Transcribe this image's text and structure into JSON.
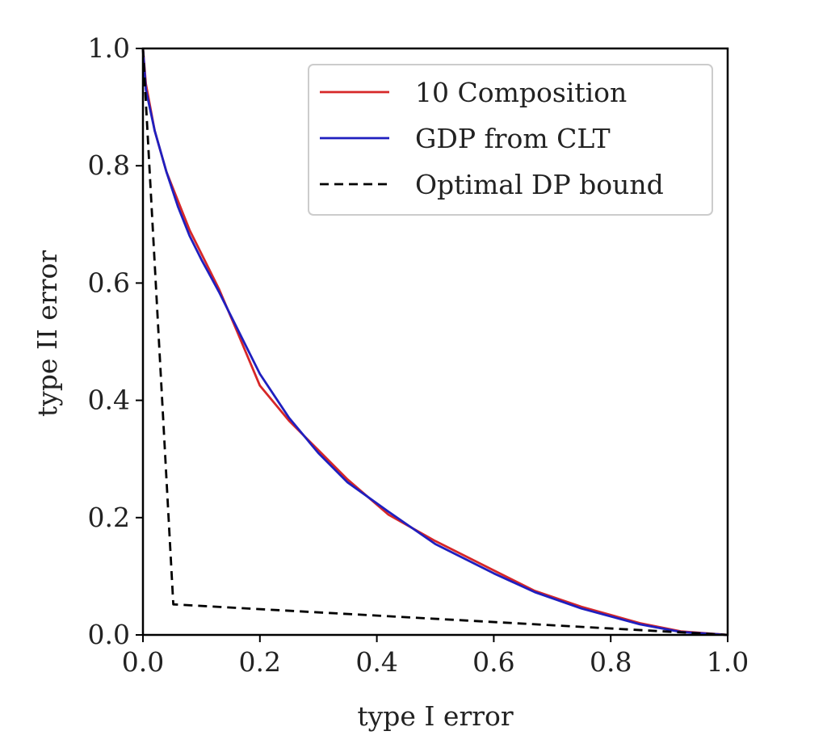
{
  "chart_data": {
    "type": "line",
    "title": "",
    "xlabel": "type I error",
    "ylabel": "type II error",
    "xlim": [
      0.0,
      1.0
    ],
    "ylim": [
      0.0,
      1.0
    ],
    "grid": false,
    "legend_position": "top-right",
    "x_ticks": [
      0.0,
      0.2,
      0.4,
      0.6,
      0.8,
      1.0
    ],
    "y_ticks": [
      0.0,
      0.2,
      0.4,
      0.6,
      0.8,
      1.0
    ],
    "x_tick_labels": [
      "0.0",
      "0.2",
      "0.4",
      "0.6",
      "0.8",
      "1.0"
    ],
    "y_tick_labels": [
      "0.0",
      "0.2",
      "0.4",
      "0.6",
      "0.8",
      "1.0"
    ],
    "series": [
      {
        "name": "10 Composition",
        "color": "#d62728",
        "style": "solid",
        "points": [
          [
            0.0,
            1.0
          ],
          [
            0.005,
            0.94
          ],
          [
            0.02,
            0.86
          ],
          [
            0.04,
            0.79
          ],
          [
            0.06,
            0.74
          ],
          [
            0.08,
            0.69
          ],
          [
            0.1,
            0.65
          ],
          [
            0.13,
            0.59
          ],
          [
            0.16,
            0.52
          ],
          [
            0.2,
            0.425
          ],
          [
            0.25,
            0.365
          ],
          [
            0.3,
            0.315
          ],
          [
            0.35,
            0.265
          ],
          [
            0.42,
            0.205
          ],
          [
            0.5,
            0.16
          ],
          [
            0.6,
            0.11
          ],
          [
            0.67,
            0.075
          ],
          [
            0.75,
            0.048
          ],
          [
            0.85,
            0.02
          ],
          [
            0.92,
            0.006
          ],
          [
            1.0,
            0.0
          ]
        ]
      },
      {
        "name": "GDP from CLT",
        "color": "#1f1fbf",
        "style": "solid",
        "points": [
          [
            0.0,
            1.0
          ],
          [
            0.005,
            0.93
          ],
          [
            0.02,
            0.86
          ],
          [
            0.04,
            0.79
          ],
          [
            0.06,
            0.73
          ],
          [
            0.08,
            0.68
          ],
          [
            0.1,
            0.64
          ],
          [
            0.13,
            0.585
          ],
          [
            0.16,
            0.525
          ],
          [
            0.2,
            0.445
          ],
          [
            0.25,
            0.37
          ],
          [
            0.3,
            0.31
          ],
          [
            0.35,
            0.26
          ],
          [
            0.42,
            0.21
          ],
          [
            0.5,
            0.155
          ],
          [
            0.6,
            0.105
          ],
          [
            0.67,
            0.073
          ],
          [
            0.75,
            0.045
          ],
          [
            0.85,
            0.018
          ],
          [
            0.92,
            0.005
          ],
          [
            1.0,
            0.0
          ]
        ]
      },
      {
        "name": "Optimal DP bound",
        "color": "#000000",
        "style": "dashed",
        "points": [
          [
            0.0,
            1.0
          ],
          [
            0.052,
            0.052
          ],
          [
            1.0,
            0.0
          ]
        ]
      }
    ]
  }
}
